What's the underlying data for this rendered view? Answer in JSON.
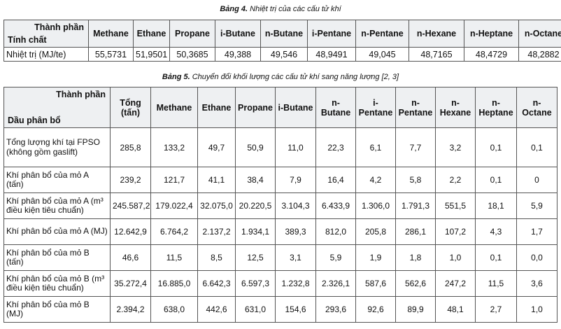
{
  "table4": {
    "caption_num": "Bảng 4.",
    "caption_text": "Nhiệt trị của các cấu tử khí",
    "corner_top": "Thành phần",
    "corner_bottom": "Tính chất",
    "headers": [
      "Methane",
      "Ethane",
      "Propane",
      "i-Butane",
      "n-Butane",
      "i-Pentane",
      "n-Pentane",
      "n-Hexane",
      "n-Heptane",
      "n-Octane"
    ],
    "row_label": "Nhiệt trị (MJ/te)",
    "values": [
      "55,5731",
      "51,9501",
      "50,3685",
      "49,388",
      "49,546",
      "48,9491",
      "49,045",
      "48,7165",
      "48,4729",
      "48,2882"
    ]
  },
  "table5": {
    "caption_num": "Bảng 5.",
    "caption_text": "Chuyển đổi khối lượng các cấu tử khí sang năng lượng [2, 3]",
    "corner_top": "Thành phần",
    "corner_bottom": "Dầu phân bổ",
    "headers": [
      "Tổng (tấn)",
      "Methane",
      "Ethane",
      "Propane",
      "i-Butane",
      "n- Butane",
      "i- Pentane",
      "n- Pentane",
      "n- Hexane",
      "n- Heptane",
      "n- Octane"
    ],
    "rows": [
      {
        "label": "Tổng lượng khí tại FPSO (không gồm gaslift)",
        "values": [
          "285,8",
          "133,2",
          "49,7",
          "50,9",
          "11,0",
          "22,3",
          "6,1",
          "7,7",
          "3,2",
          "0,1",
          "0,1"
        ]
      },
      {
        "label": "Khí phân bổ của mỏ A (tấn)",
        "values": [
          "239,2",
          "121,7",
          "41,1",
          "38,4",
          "7,9",
          "16,4",
          "4,2",
          "5,8",
          "2,2",
          "0,1",
          "0"
        ]
      },
      {
        "label": "Khí phân bổ của mỏ A (m³ điều kiện tiêu chuẩn)",
        "values": [
          "245.587,2",
          "179.022,4",
          "32.075,0",
          "20.220,5",
          "3.104,3",
          "6.433,9",
          "1.306,0",
          "1.791,3",
          "551,5",
          "18,1",
          "5,9"
        ]
      },
      {
        "label": "Khí phân bổ của mỏ A (MJ)",
        "values": [
          "12.642,9",
          "6.764,2",
          "2.137,2",
          "1.934,1",
          "389,3",
          "812,0",
          "205,8",
          "286,1",
          "107,2",
          "4,3",
          "1,7"
        ]
      },
      {
        "label": "Khí phân bổ của mỏ B (tấn)",
        "values": [
          "46,6",
          "11,5",
          "8,5",
          "12,5",
          "3,1",
          "5,9",
          "1,9",
          "1,8",
          "1,0",
          "0,1",
          "0,0"
        ]
      },
      {
        "label": "Khí phân bổ của mỏ B (m³ điều kiện tiêu chuẩn)",
        "values": [
          "35.272,4",
          "16.885,0",
          "6.642,3",
          "6.597,3",
          "1.232,8",
          "2.326,1",
          "587,6",
          "562,6",
          "247,2",
          "11,5",
          "3,6"
        ]
      },
      {
        "label": "Khí phân bổ của mỏ B (MJ)",
        "values": [
          "2.394,2",
          "638,0",
          "442,6",
          "631,0",
          "154,6",
          "293,6",
          "92,6",
          "89,9",
          "48,1",
          "2,7",
          "1,0"
        ]
      }
    ]
  }
}
